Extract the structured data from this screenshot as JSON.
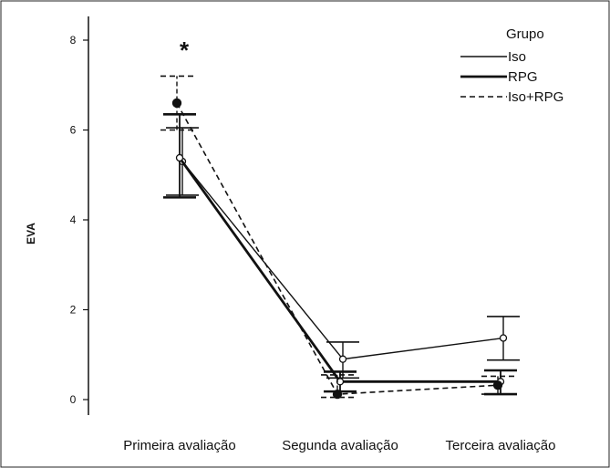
{
  "chart_data": {
    "type": "line",
    "title": "",
    "xlabel": "",
    "ylabel": "EVA",
    "categories": [
      "Primeira avaliação",
      "Segunda avaliação",
      "Terceira avaliação"
    ],
    "ylim": [
      0,
      8
    ],
    "yticks": [
      0,
      2,
      4,
      6,
      8
    ],
    "grid": false,
    "legend": {
      "title": "Grupo",
      "position": "top-right"
    },
    "series": [
      {
        "name": "Iso",
        "style": "thin-solid",
        "values": [
          5.3,
          0.9,
          1.37
        ],
        "error_low": [
          4.55,
          0.48,
          0.88
        ],
        "error_high": [
          6.05,
          1.28,
          1.85
        ]
      },
      {
        "name": "RPG",
        "style": "thick-solid",
        "values": [
          5.38,
          0.4,
          0.4
        ],
        "error_low": [
          4.5,
          0.18,
          0.12
        ],
        "error_high": [
          6.35,
          0.62,
          0.65
        ]
      },
      {
        "name": "Iso+RPG",
        "style": "dashed",
        "values": [
          6.6,
          0.12,
          0.32
        ],
        "error_low": [
          6.0,
          0.05,
          0.12
        ],
        "error_high": [
          7.2,
          0.55,
          0.52
        ]
      }
    ],
    "annotations": [
      {
        "text": "*",
        "category": "Primeira avaliação"
      }
    ]
  }
}
